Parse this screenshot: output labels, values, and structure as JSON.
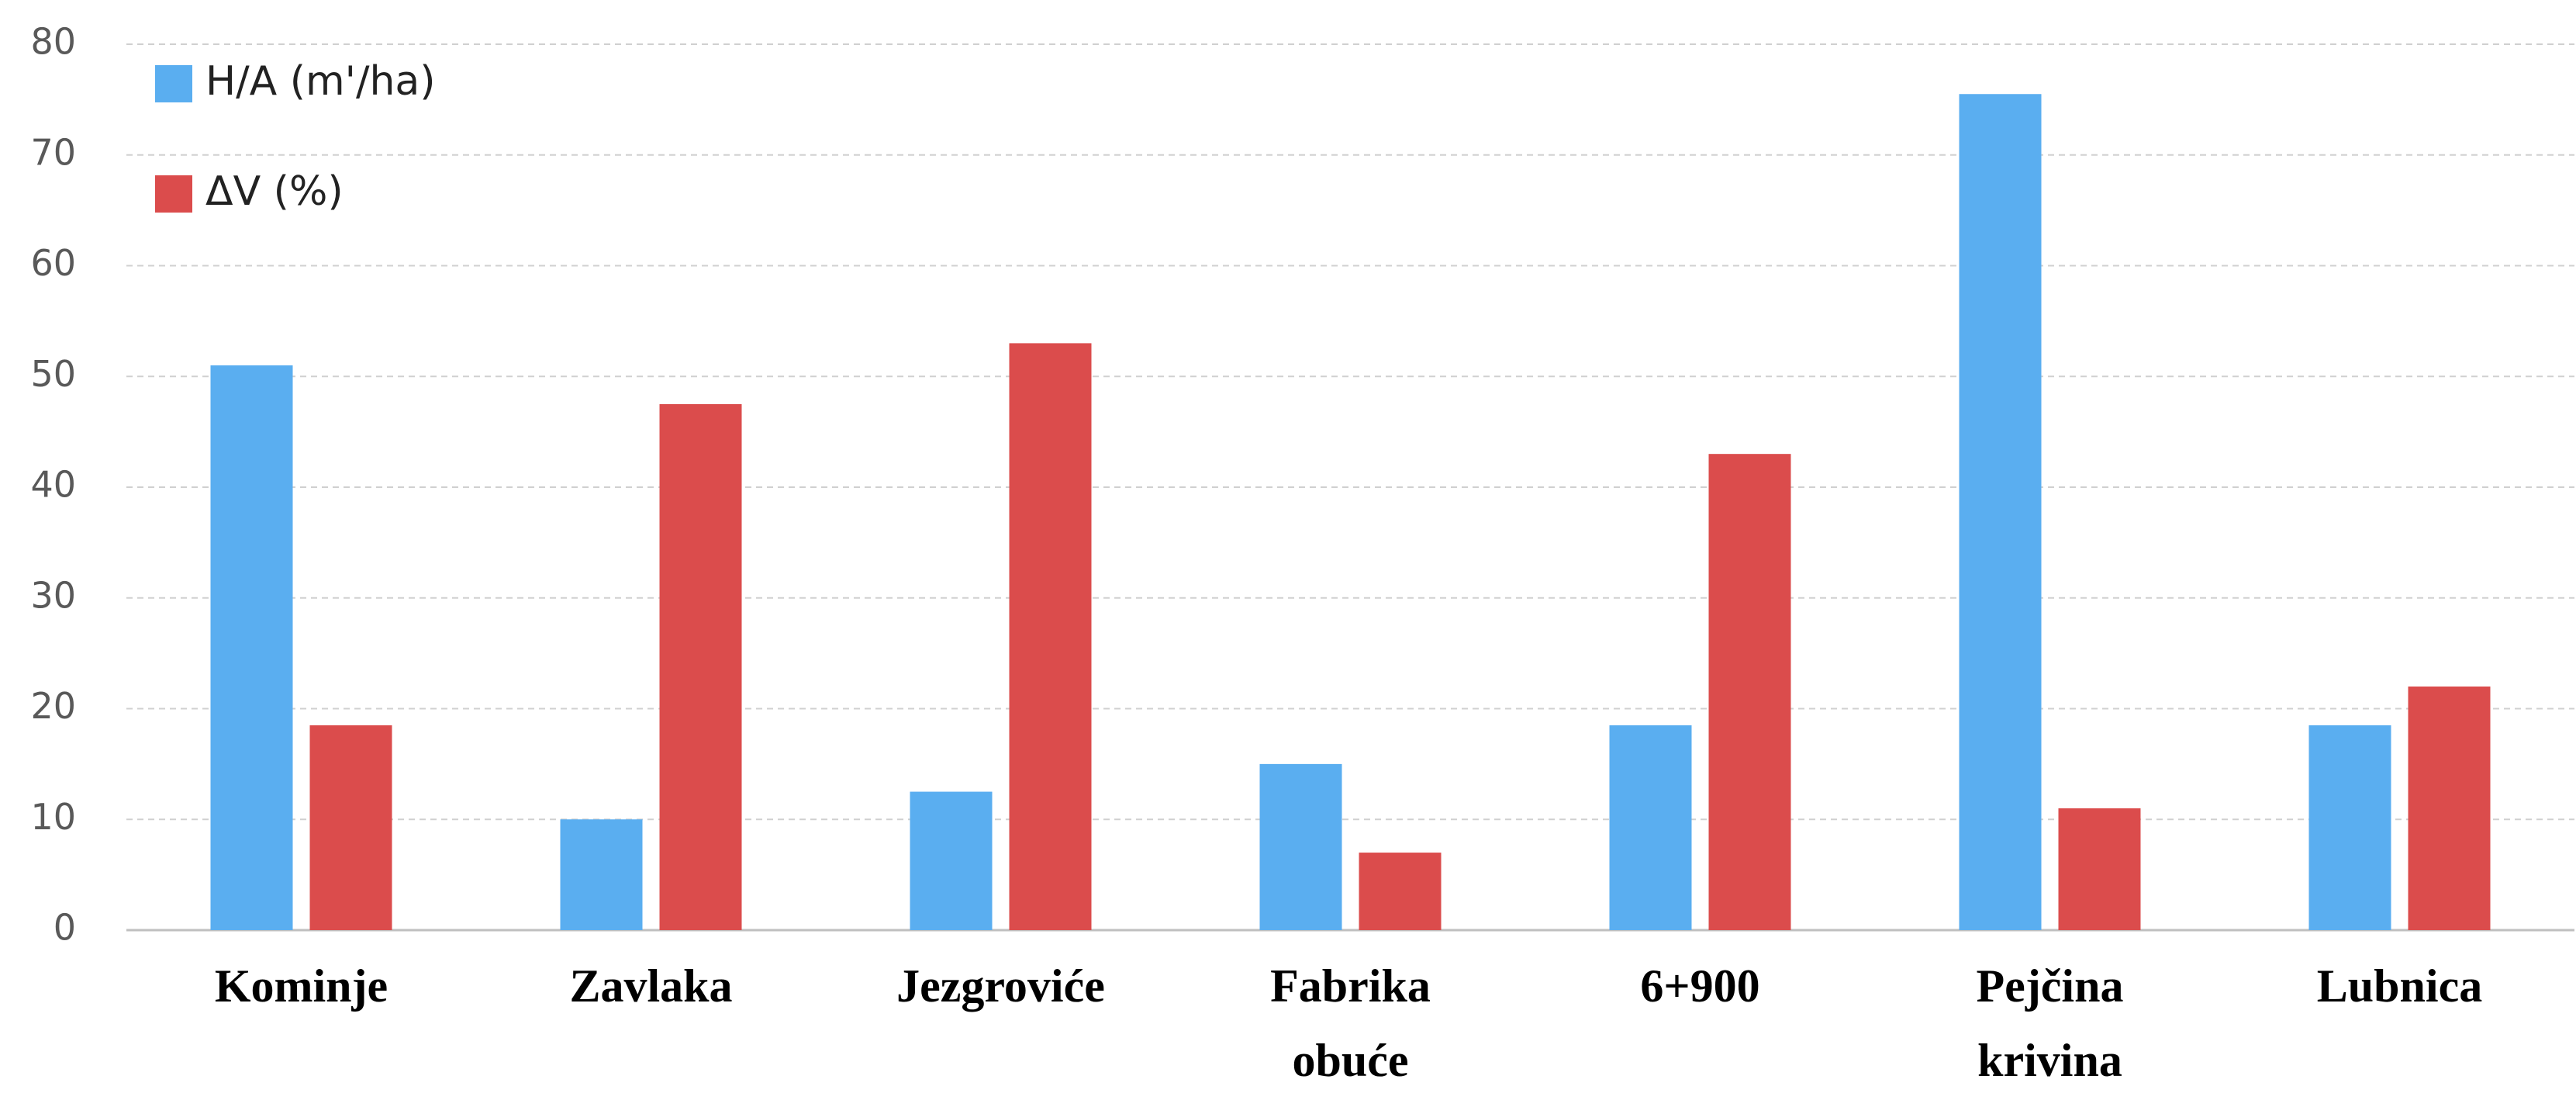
{
  "chart_data": {
    "type": "bar",
    "categories": [
      "Kominje",
      "Zavlaka",
      "Jezgroviće",
      "Fabrika obuće",
      "6+900",
      "Pejčina krivina",
      "Lubnica"
    ],
    "series": [
      {
        "name": "H/A (m'/ha)",
        "color": "#5aaef0",
        "values": [
          51,
          10,
          12.5,
          15,
          18.5,
          75.5,
          18.5
        ]
      },
      {
        "name": "ΔV (%)",
        "color": "#db4c4c",
        "values": [
          18.5,
          47.5,
          53,
          7,
          43,
          11,
          22
        ]
      }
    ],
    "ylim": [
      0,
      80
    ],
    "yticks": [
      0,
      10,
      20,
      30,
      40,
      50,
      60,
      70,
      80
    ],
    "grid": true,
    "legend": "top-left"
  }
}
